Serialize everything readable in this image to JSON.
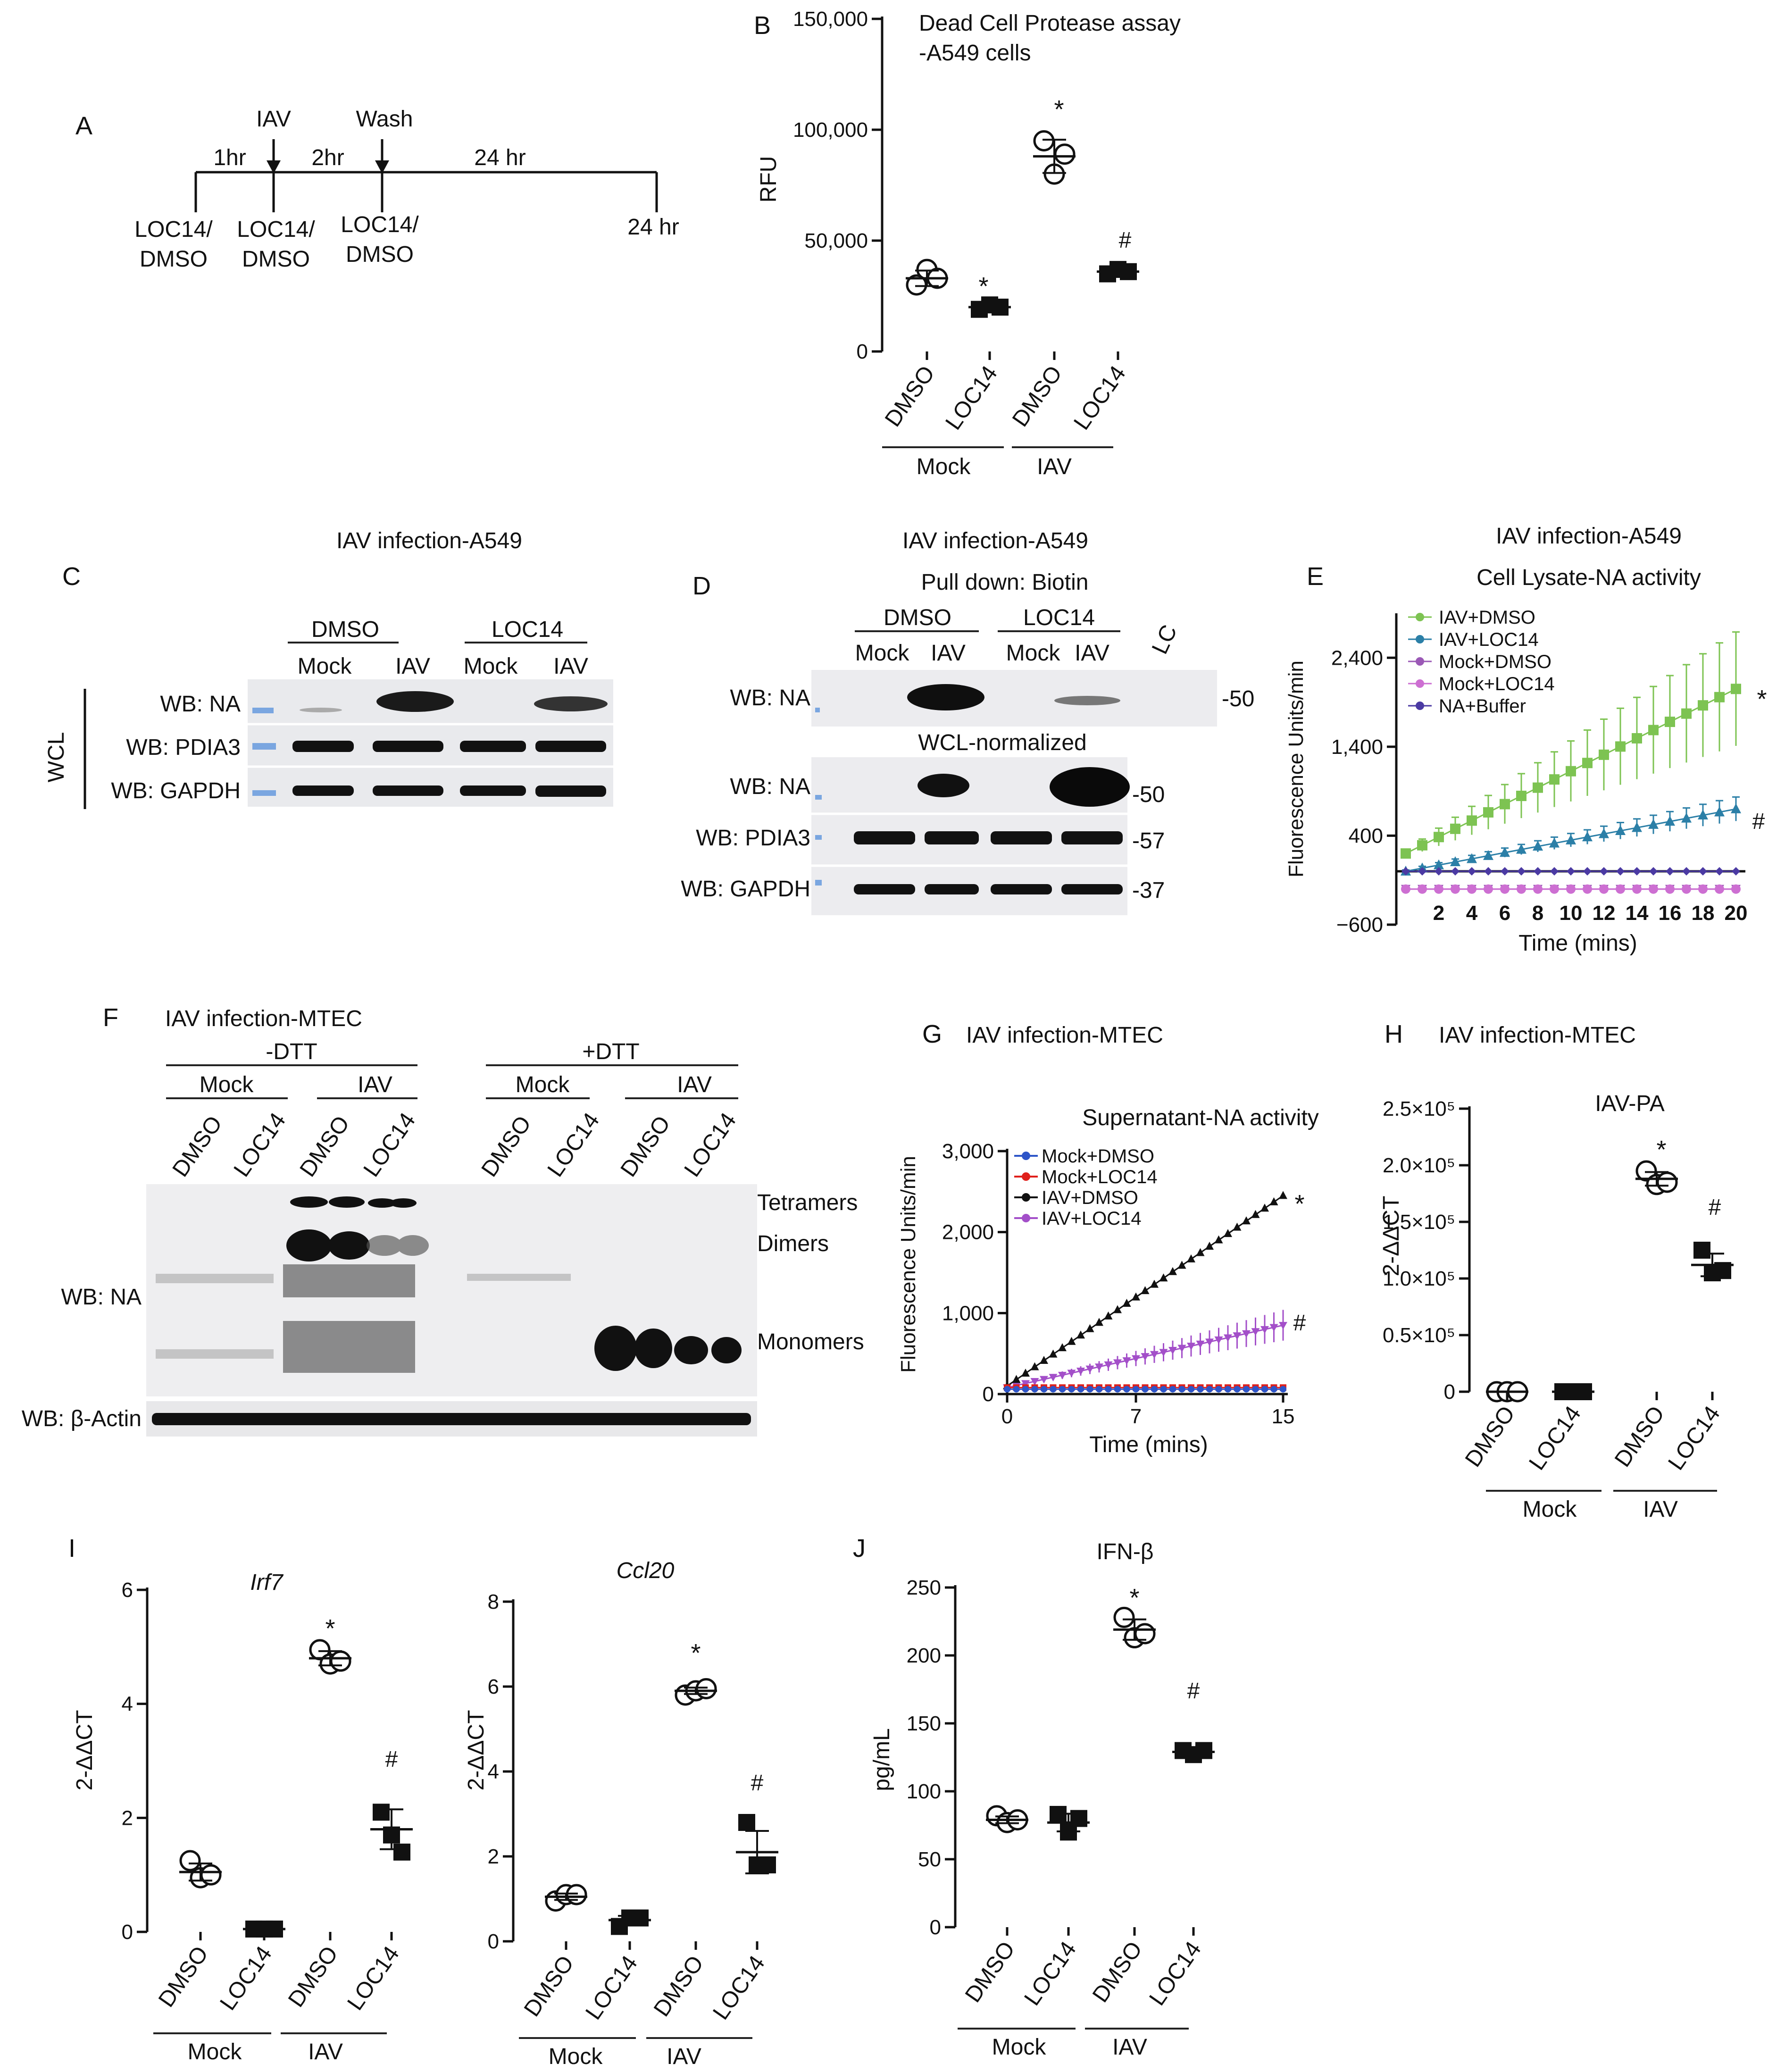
{
  "panelA": {
    "letter": "A",
    "iav": "IAV",
    "wash": "Wash",
    "t1": "1hr",
    "t2": "2hr",
    "t3": "24 hr",
    "l1a": "LOC14/",
    "l1b": "DMSO",
    "l2a": "LOC14/",
    "l2b": "DMSO",
    "l3a": "LOC14/",
    "l3b": "DMSO",
    "end": "24 hr"
  },
  "panelB": {
    "letter": "B",
    "title1": "Dead Cell Protease assay",
    "title2": "-A549 cells",
    "ylabel": "RFU",
    "ticks": [
      "150,000",
      "100,000",
      "50,000",
      "0"
    ],
    "cats": [
      "DMSO",
      "LOC14",
      "DMSO",
      "LOC14"
    ],
    "g1": "Mock",
    "g2": "IAV",
    "sig1": "*",
    "sig2": "*",
    "sig3": "#"
  },
  "panelC": {
    "letter": "C",
    "title": "IAV infection-A549",
    "dmso": "DMSO",
    "loc14": "LOC14",
    "lanes": [
      "Mock",
      "IAV",
      "Mock",
      "IAV"
    ],
    "wcl": "WCL",
    "rows": [
      "WB: NA",
      "WB: PDIA3",
      "WB: GAPDH"
    ]
  },
  "panelD": {
    "letter": "D",
    "title": "IAV infection-A549",
    "pull": "Pull down: Biotin",
    "dmso": "DMSO",
    "loc14": "LOC14",
    "lanes": [
      "Mock",
      "IAV",
      "Mock",
      "IAV"
    ],
    "lc": "LC",
    "row1": "WB: NA",
    "norm": "WCL-normalized",
    "rows": [
      "WB: NA",
      "WB: PDIA3",
      "WB: GAPDH"
    ],
    "mw": [
      "-50",
      "-50",
      "-57",
      "-37"
    ]
  },
  "panelE": {
    "letter": "E",
    "title1": "IAV infection-A549",
    "title2": "Cell Lysate-NA activity",
    "ylabel": "Fluorescence Units/min",
    "xlabel": "Time (mins)",
    "yticks": [
      "2,400",
      "1,400",
      "400",
      "−600"
    ],
    "xticks": [
      "2",
      "4",
      "6",
      "8",
      "10",
      "12",
      "14",
      "16",
      "18",
      "20"
    ],
    "legend": [
      "IAV+DMSO",
      "IAV+LOC14",
      "Mock+DMSO",
      "Mock+LOC14",
      "NA+Buffer"
    ],
    "sig1": "*",
    "sig2": "#"
  },
  "panelF": {
    "letter": "F",
    "title": "IAV infection-MTEC",
    "minus": "-DTT",
    "plus": "+DTT",
    "mock": "Mock",
    "iav": "IAV",
    "lanes": [
      "DMSO",
      "LOC14",
      "DMSO",
      "LOC14",
      "DMSO",
      "LOC14",
      "DMSO",
      "LOC14"
    ],
    "tetramers": "Tetramers",
    "dimers": "Dimers",
    "monomers": "Monomers",
    "wbna": "WB: NA",
    "wbactin": "WB: β-Actin"
  },
  "panelG": {
    "letter": "G",
    "title": "IAV infection-MTEC",
    "subtitle": "Supernatant-NA activity",
    "ylabel": "Fluorescence Units/min",
    "xlabel": "Time (mins)",
    "yticks": [
      "3,000",
      "2,000",
      "1,000",
      "0"
    ],
    "xticks": [
      "0",
      "7",
      "15"
    ],
    "legend": [
      "Mock+DMSO",
      "Mock+LOC14",
      "IAV+DMSO",
      "IAV+LOC14"
    ],
    "sig1": "*",
    "sig2": "#"
  },
  "panelH": {
    "letter": "H",
    "title": "IAV infection-MTEC",
    "subtitle": "IAV-PA",
    "ylabel": "2-ΔΔCT",
    "yticks": [
      "2.5×10⁵",
      "2.0×10⁵",
      "1.5×10⁵",
      "1.0×10⁵",
      "0.5×10⁵",
      "0"
    ],
    "cats": [
      "DMSO",
      "LOC14",
      "DMSO",
      "LOC14"
    ],
    "g1": "Mock",
    "g2": "IAV",
    "sig1": "*",
    "sig2": "#"
  },
  "panelI": {
    "letter": "I",
    "gene1": "Irf7",
    "gene2": "Ccl20",
    "ylabel": "2-ΔΔCT",
    "yticks1": [
      "6",
      "4",
      "2",
      "0"
    ],
    "yticks2": [
      "8",
      "6",
      "4",
      "2",
      "0"
    ],
    "cats": [
      "DMSO",
      "LOC14",
      "DMSO",
      "LOC14"
    ],
    "g1": "Mock",
    "g2": "IAV",
    "sig1": "*",
    "sig2": "#"
  },
  "panelJ": {
    "letter": "J",
    "title": "IFN-β",
    "ylabel": "pg/mL",
    "yticks": [
      "250",
      "200",
      "150",
      "100",
      "50",
      "0"
    ],
    "cats": [
      "DMSO",
      "LOC14",
      "DMSO",
      "LOC14"
    ],
    "g1": "Mock",
    "g2": "IAV",
    "sig1": "*",
    "sig2": "#"
  },
  "chart_data": [
    {
      "id": "B",
      "type": "scatter",
      "title": "Dead Cell Protease assay -A549 cells",
      "ylabel": "RFU",
      "ylim": [
        0,
        150000
      ],
      "categories": [
        "Mock DMSO",
        "Mock LOC14",
        "IAV DMSO",
        "IAV LOC14"
      ],
      "means": [
        33000,
        20000,
        88000,
        36000
      ],
      "points": [
        [
          30000,
          37000,
          33000
        ],
        [
          19000,
          21000,
          20000
        ],
        [
          95000,
          80000,
          89000
        ],
        [
          35000,
          37000,
          36000
        ]
      ]
    },
    {
      "id": "E",
      "type": "line",
      "title": "Cell Lysate-NA activity",
      "xlabel": "Time (mins)",
      "ylabel": "Fluorescence Units/min",
      "xlim": [
        0,
        20
      ],
      "ylim": [
        -600,
        2900
      ],
      "x": [
        0,
        1,
        2,
        3,
        4,
        5,
        6,
        7,
        8,
        9,
        10,
        11,
        12,
        13,
        14,
        15,
        16,
        17,
        18,
        19,
        20
      ],
      "series": [
        {
          "name": "IAV+DMSO",
          "start": 200,
          "end": 2050
        },
        {
          "name": "IAV+LOC14",
          "start": 0,
          "end": 700
        },
        {
          "name": "Mock+DMSO",
          "start": -200,
          "end": -200
        },
        {
          "name": "Mock+LOC14",
          "start": -200,
          "end": -200
        },
        {
          "name": "NA+Buffer",
          "start": 0,
          "end": 0
        }
      ]
    },
    {
      "id": "G",
      "type": "line",
      "title": "Supernatant-NA activity",
      "xlabel": "Time (mins)",
      "ylabel": "Fluorescence Units/min",
      "xlim": [
        0,
        15
      ],
      "ylim": [
        0,
        3000
      ],
      "x": [
        0,
        15
      ],
      "series": [
        {
          "name": "Mock+DMSO",
          "start": 60,
          "end": 60
        },
        {
          "name": "Mock+LOC14",
          "start": 80,
          "end": 80
        },
        {
          "name": "IAV+DMSO",
          "start": 100,
          "end": 2450
        },
        {
          "name": "IAV+LOC14",
          "start": 80,
          "end": 850
        }
      ]
    },
    {
      "id": "H",
      "type": "scatter",
      "title": "IAV-PA",
      "ylabel": "2-ΔΔCT",
      "ylim": [
        0,
        250000
      ],
      "categories": [
        "Mock DMSO",
        "Mock LOC14",
        "IAV DMSO",
        "IAV LOC14"
      ],
      "means": [
        0,
        0,
        188000,
        112000
      ],
      "points": [
        [
          0,
          0,
          0
        ],
        [
          0,
          0,
          0
        ],
        [
          195000,
          183000,
          185000
        ],
        [
          125000,
          105000,
          107000
        ]
      ]
    },
    {
      "id": "I1",
      "type": "scatter",
      "title": "Irf7",
      "ylabel": "2-ΔΔCT",
      "ylim": [
        0,
        6
      ],
      "categories": [
        "Mock DMSO",
        "Mock LOC14",
        "IAV DMSO",
        "IAV LOC14"
      ],
      "means": [
        1.05,
        0.05,
        4.8,
        1.8
      ],
      "points": [
        [
          1.25,
          0.95,
          1.0
        ],
        [
          0.05,
          0.05,
          0.05
        ],
        [
          4.95,
          4.7,
          4.75
        ],
        [
          2.1,
          1.7,
          1.4
        ]
      ]
    },
    {
      "id": "I2",
      "type": "scatter",
      "title": "Ccl20",
      "ylabel": "2-ΔΔCT",
      "ylim": [
        0,
        8
      ],
      "categories": [
        "Mock DMSO",
        "Mock LOC14",
        "IAV DMSO",
        "IAV LOC14"
      ],
      "means": [
        1.05,
        0.5,
        5.9,
        2.1
      ],
      "points": [
        [
          0.95,
          1.1,
          1.1
        ],
        [
          0.35,
          0.55,
          0.55
        ],
        [
          5.8,
          5.9,
          5.95
        ],
        [
          2.8,
          1.8,
          1.8
        ]
      ]
    },
    {
      "id": "J",
      "type": "scatter",
      "title": "IFN-β",
      "ylabel": "pg/mL",
      "ylim": [
        0,
        250
      ],
      "categories": [
        "Mock DMSO",
        "Mock LOC14",
        "IAV DMSO",
        "IAV LOC14"
      ],
      "means": [
        79,
        77,
        219,
        129
      ],
      "points": [
        [
          82,
          77,
          79
        ],
        [
          83,
          70,
          80
        ],
        [
          228,
          213,
          216
        ],
        [
          130,
          127,
          130
        ]
      ]
    }
  ],
  "colors": {
    "green": "#7dc352",
    "teal": "#2b7fa7",
    "purple": "#9b59b6",
    "pink": "#cd6fd2",
    "navy": "#4b3aa3",
    "blue": "#2d55c8",
    "red": "#e0201b",
    "black": "#111111",
    "violet": "#a34fc9"
  }
}
